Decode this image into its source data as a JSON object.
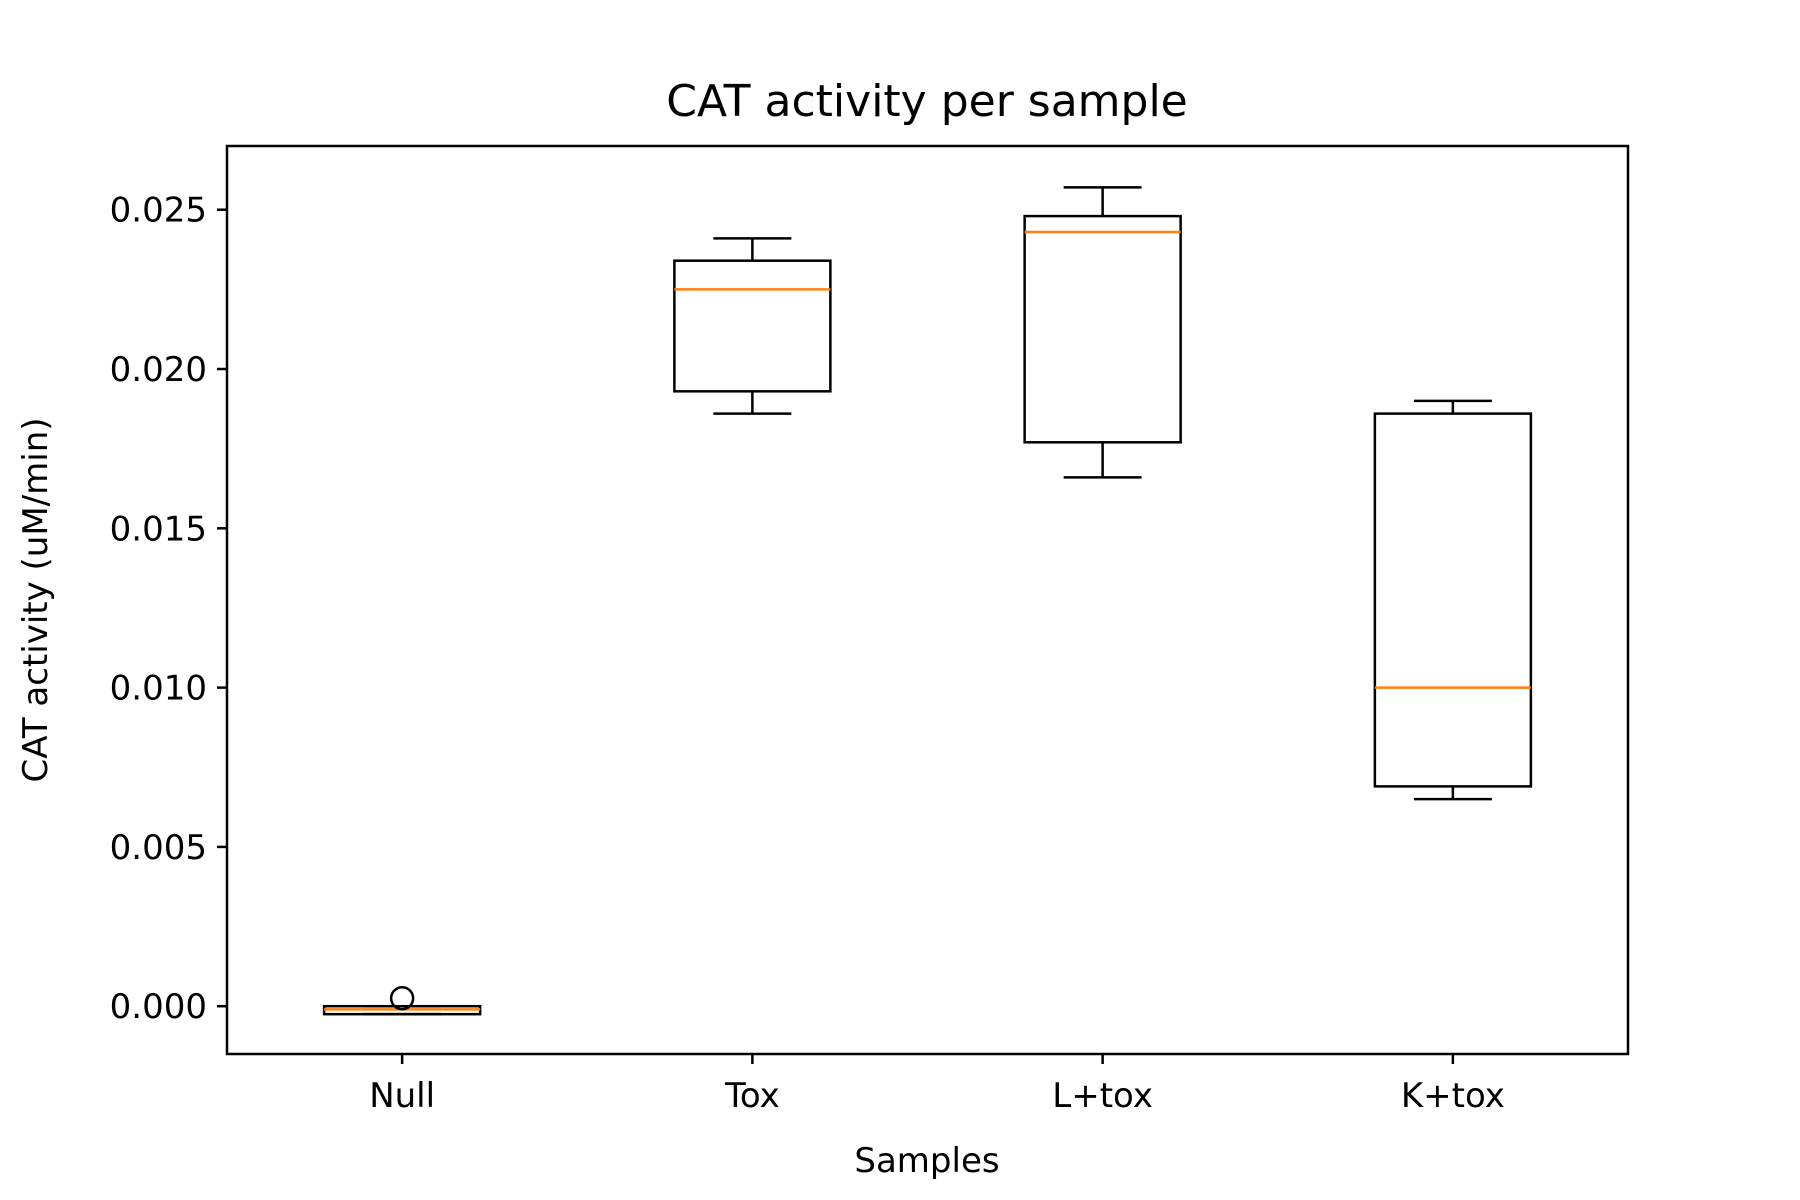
{
  "chart_data": {
    "type": "box",
    "title": "CAT activity per sample",
    "xlabel": "Samples",
    "ylabel": "CAT activity (uM/min)",
    "ylim": [
      -0.0015,
      0.027
    ],
    "yticks": [
      0.0,
      0.005,
      0.01,
      0.015,
      0.02,
      0.025
    ],
    "ytick_labels": [
      "0.000",
      "0.005",
      "0.010",
      "0.015",
      "0.020",
      "0.025"
    ],
    "grid": false,
    "categories": [
      "Null",
      "Tox",
      "L+tox",
      "K+tox"
    ],
    "boxes": [
      {
        "name": "Null",
        "whisker_low": -0.00025,
        "q1": -0.00025,
        "median": -0.0001,
        "q3": 0.0,
        "whisker_high": 0.0,
        "outliers": [
          0.00025
        ]
      },
      {
        "name": "Tox",
        "whisker_low": 0.0186,
        "q1": 0.0193,
        "median": 0.0225,
        "q3": 0.0234,
        "whisker_high": 0.0241,
        "outliers": []
      },
      {
        "name": "L+tox",
        "whisker_low": 0.0166,
        "q1": 0.0177,
        "median": 0.0243,
        "q3": 0.0248,
        "whisker_high": 0.0257,
        "outliers": []
      },
      {
        "name": "K+tox",
        "whisker_low": 0.0065,
        "q1": 0.0069,
        "median": 0.01,
        "q3": 0.0186,
        "whisker_high": 0.019,
        "outliers": []
      }
    ],
    "colors": {
      "box": "#000000",
      "median": "#ff7f0e",
      "outlier": "#000000"
    }
  }
}
